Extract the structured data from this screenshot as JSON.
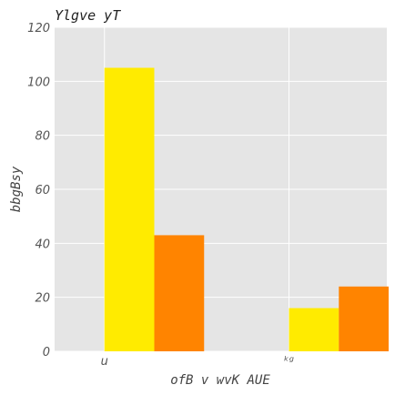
{
  "chart_data": {
    "type": "bar",
    "title": "Ylgve yT",
    "xlabel": "ofB v wvK AUE",
    "ylabel": "bbgBsy",
    "categories": [
      "u",
      "ᵏᵍ"
    ],
    "series": [
      {
        "color": "#ffeb00",
        "values": [
          105,
          16
        ]
      },
      {
        "color": "#ff8400",
        "values": [
          43,
          24
        ]
      }
    ],
    "ylim": [
      0,
      120
    ],
    "yticks": [
      0,
      20,
      40,
      60,
      80,
      100,
      120
    ],
    "grid": true,
    "background": "#e5e5e5",
    "grid_color": "#ffffff"
  }
}
